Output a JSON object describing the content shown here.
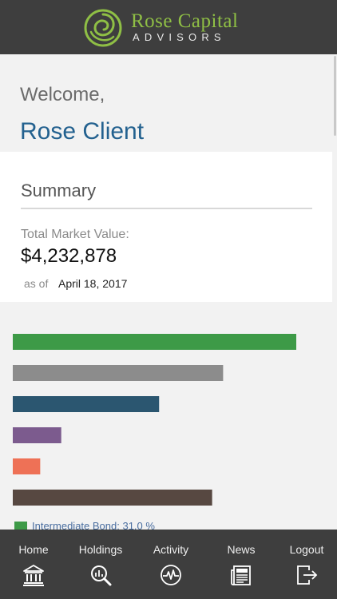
{
  "header": {
    "brand_line1": "Rose Capital",
    "brand_line2": "ADVISORS",
    "logo_icon": "rose-spiral-logo",
    "colors": {
      "bar": "#3e3e3e",
      "brand_green": "#8fbf45"
    }
  },
  "greeting": {
    "welcome": "Welcome,",
    "client_name": "Rose Client"
  },
  "summary": {
    "title": "Summary",
    "total_market_value_label": "Total Market Value:",
    "total_market_value": "$4,232,878",
    "as_of_label": "as of",
    "as_of_date": "April 18, 2017"
  },
  "chart_data": {
    "type": "bar",
    "orientation": "horizontal",
    "series": [
      {
        "name": "Intermediate Bond",
        "value": 31.0,
        "color": "#3d9a47"
      },
      {
        "value": 23.0,
        "color": "#8c8c8c"
      },
      {
        "value": 16.0,
        "color": "#2b5670"
      },
      {
        "value": 5.3,
        "color": "#7c5b8e"
      },
      {
        "value": 3.0,
        "color": "#ee7156"
      },
      {
        "value": 21.8,
        "color": "#574841"
      }
    ],
    "axis_max": 31.0,
    "xlabel": "",
    "ylabel": "",
    "grid": false
  },
  "legend": [
    {
      "label": "Intermediate Bond: 31.0 %",
      "color": "#3d9a47"
    }
  ],
  "tabbar": {
    "items": [
      {
        "label": "Home",
        "icon": "bank-icon"
      },
      {
        "label": "Holdings",
        "icon": "magnifier-chart-icon"
      },
      {
        "label": "Activity",
        "icon": "pulse-icon"
      },
      {
        "label": "News",
        "icon": "newspaper-icon"
      },
      {
        "label": "Logout",
        "icon": "exit-icon"
      }
    ]
  }
}
